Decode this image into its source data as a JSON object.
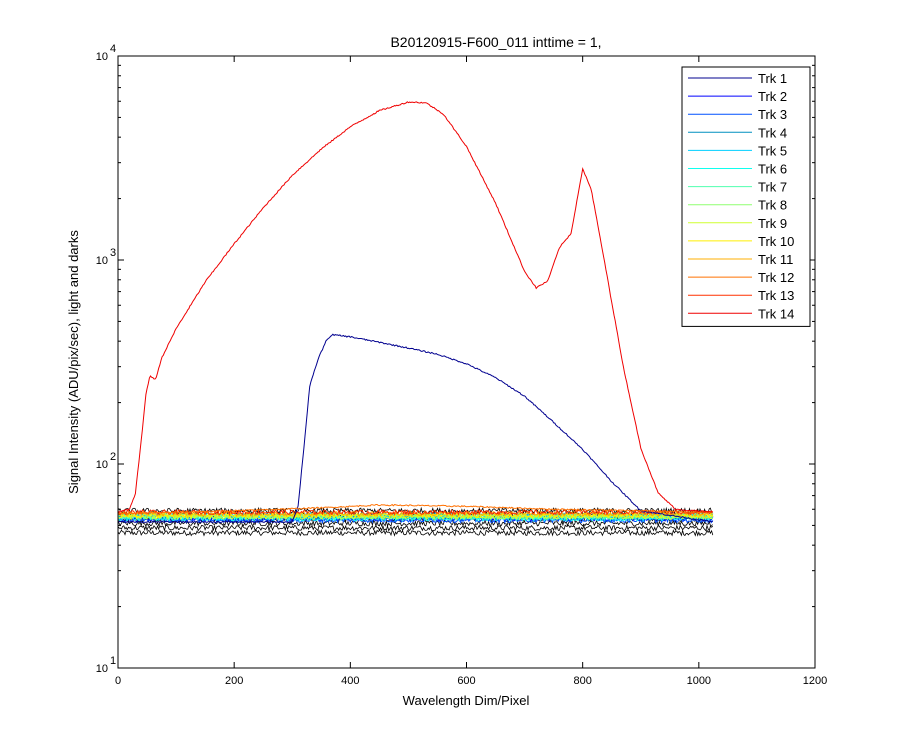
{
  "chart_data": {
    "type": "line",
    "title": "B20120915-F600_011 inttime = 1,",
    "xlabel": "Wavelength Dim/Pixel",
    "ylabel": "Signal Intensity (ADU/pix/sec), light and darks",
    "xlim": [
      0,
      1200
    ],
    "ylim": [
      10,
      10000
    ],
    "yscale": "log",
    "grid": false,
    "legend_position": "top-right",
    "x_ticks": [
      0,
      200,
      400,
      600,
      800,
      1000,
      1200
    ],
    "y_ticks": [
      {
        "value": 10,
        "base": "10",
        "exp": "1"
      },
      {
        "value": 100,
        "base": "10",
        "exp": "2"
      },
      {
        "value": 1000,
        "base": "10",
        "exp": "3"
      },
      {
        "value": 10000,
        "base": "10",
        "exp": "4"
      }
    ],
    "series": [
      {
        "name": "Trk 1",
        "color": "#00008f",
        "level": 52,
        "signal": [
          [
            0,
            52
          ],
          [
            300,
            52
          ],
          [
            310,
            62
          ],
          [
            320,
            120
          ],
          [
            330,
            240
          ],
          [
            345,
            330
          ],
          [
            360,
            410
          ],
          [
            370,
            430
          ],
          [
            400,
            420
          ],
          [
            450,
            395
          ],
          [
            500,
            370
          ],
          [
            550,
            345
          ],
          [
            600,
            310
          ],
          [
            650,
            265
          ],
          [
            700,
            215
          ],
          [
            750,
            160
          ],
          [
            800,
            118
          ],
          [
            850,
            82
          ],
          [
            900,
            59
          ],
          [
            1024,
            52
          ]
        ]
      },
      {
        "name": "Trk 2",
        "color": "#0000ff",
        "level": 54
      },
      {
        "name": "Trk 3",
        "color": "#0050ff",
        "level": 53
      },
      {
        "name": "Trk 4",
        "color": "#008fbf",
        "level": 55
      },
      {
        "name": "Trk 5",
        "color": "#00cfff",
        "level": 56
      },
      {
        "name": "Trk 6",
        "color": "#10ffef",
        "level": 54
      },
      {
        "name": "Trk 7",
        "color": "#50ffaf",
        "level": 55
      },
      {
        "name": "Trk 8",
        "color": "#8fff70",
        "level": 56
      },
      {
        "name": "Trk 9",
        "color": "#cfff30",
        "level": 55
      },
      {
        "name": "Trk 10",
        "color": "#ffef00",
        "level": 56
      },
      {
        "name": "Trk 11",
        "color": "#ffaf00",
        "level": 57
      },
      {
        "name": "Trk 12",
        "color": "#ff7000",
        "level": 59,
        "signal": [
          [
            0,
            57
          ],
          [
            200,
            59
          ],
          [
            350,
            61
          ],
          [
            450,
            63
          ],
          [
            600,
            62
          ],
          [
            750,
            60
          ],
          [
            900,
            59
          ],
          [
            1024,
            58
          ]
        ]
      },
      {
        "name": "Trk 13",
        "color": "#ff3000",
        "level": 58
      },
      {
        "name": "Trk 14",
        "color": "#ef0000",
        "level": 58,
        "signal": [
          [
            0,
            58
          ],
          [
            20,
            60
          ],
          [
            30,
            72
          ],
          [
            40,
            130
          ],
          [
            48,
            220
          ],
          [
            55,
            270
          ],
          [
            65,
            260
          ],
          [
            75,
            330
          ],
          [
            100,
            460
          ],
          [
            150,
            780
          ],
          [
            200,
            1200
          ],
          [
            250,
            1800
          ],
          [
            300,
            2600
          ],
          [
            350,
            3500
          ],
          [
            400,
            4500
          ],
          [
            450,
            5400
          ],
          [
            500,
            5950
          ],
          [
            530,
            5900
          ],
          [
            560,
            5200
          ],
          [
            600,
            3600
          ],
          [
            650,
            1900
          ],
          [
            700,
            880
          ],
          [
            720,
            730
          ],
          [
            740,
            790
          ],
          [
            760,
            1150
          ],
          [
            780,
            1350
          ],
          [
            800,
            2800
          ],
          [
            815,
            2200
          ],
          [
            840,
            900
          ],
          [
            870,
            300
          ],
          [
            900,
            120
          ],
          [
            930,
            72
          ],
          [
            960,
            60
          ],
          [
            1024,
            58
          ]
        ]
      }
    ],
    "dark_band": {
      "color": "#000000",
      "low": 46,
      "high": 59
    }
  }
}
